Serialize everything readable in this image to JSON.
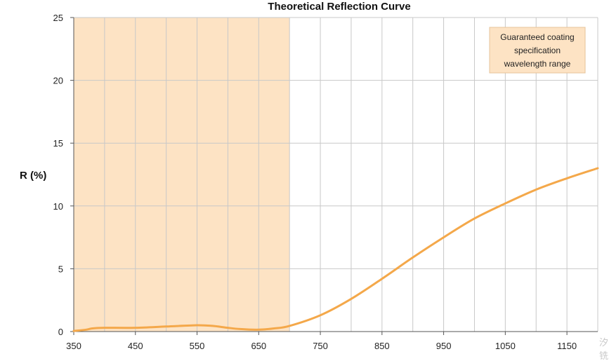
{
  "chart_data": {
    "type": "line",
    "title": "Theoretical Reflection Curve",
    "ylabel": "R (%)",
    "xlabel": "",
    "xlim": [
      350,
      1200
    ],
    "ylim": [
      0,
      25
    ],
    "x_ticks": [
      350,
      450,
      550,
      650,
      750,
      850,
      950,
      1050,
      1150
    ],
    "y_ticks": [
      0,
      5,
      10,
      15,
      20,
      25
    ],
    "grid": true,
    "x_minor_step": 50,
    "line_color": "#f4a84a",
    "band": {
      "x_range": [
        350,
        700
      ],
      "color": "#fde3c4",
      "label_lines": [
        "Guaranteed coating",
        "specification",
        "wavelength range"
      ]
    },
    "series": [
      {
        "x": [
          350,
          370,
          380,
          400,
          450,
          500,
          550,
          575,
          600,
          620,
          650,
          675,
          700,
          750,
          800,
          850,
          900,
          950,
          1000,
          1050,
          1100,
          1150,
          1200
        ],
        "values": [
          0.05,
          0.15,
          0.25,
          0.3,
          0.3,
          0.4,
          0.5,
          0.45,
          0.3,
          0.2,
          0.15,
          0.25,
          0.45,
          1.3,
          2.6,
          4.2,
          5.9,
          7.5,
          9.0,
          10.2,
          11.3,
          12.2,
          13.0
        ]
      }
    ]
  },
  "watermark": "汐\n铣"
}
